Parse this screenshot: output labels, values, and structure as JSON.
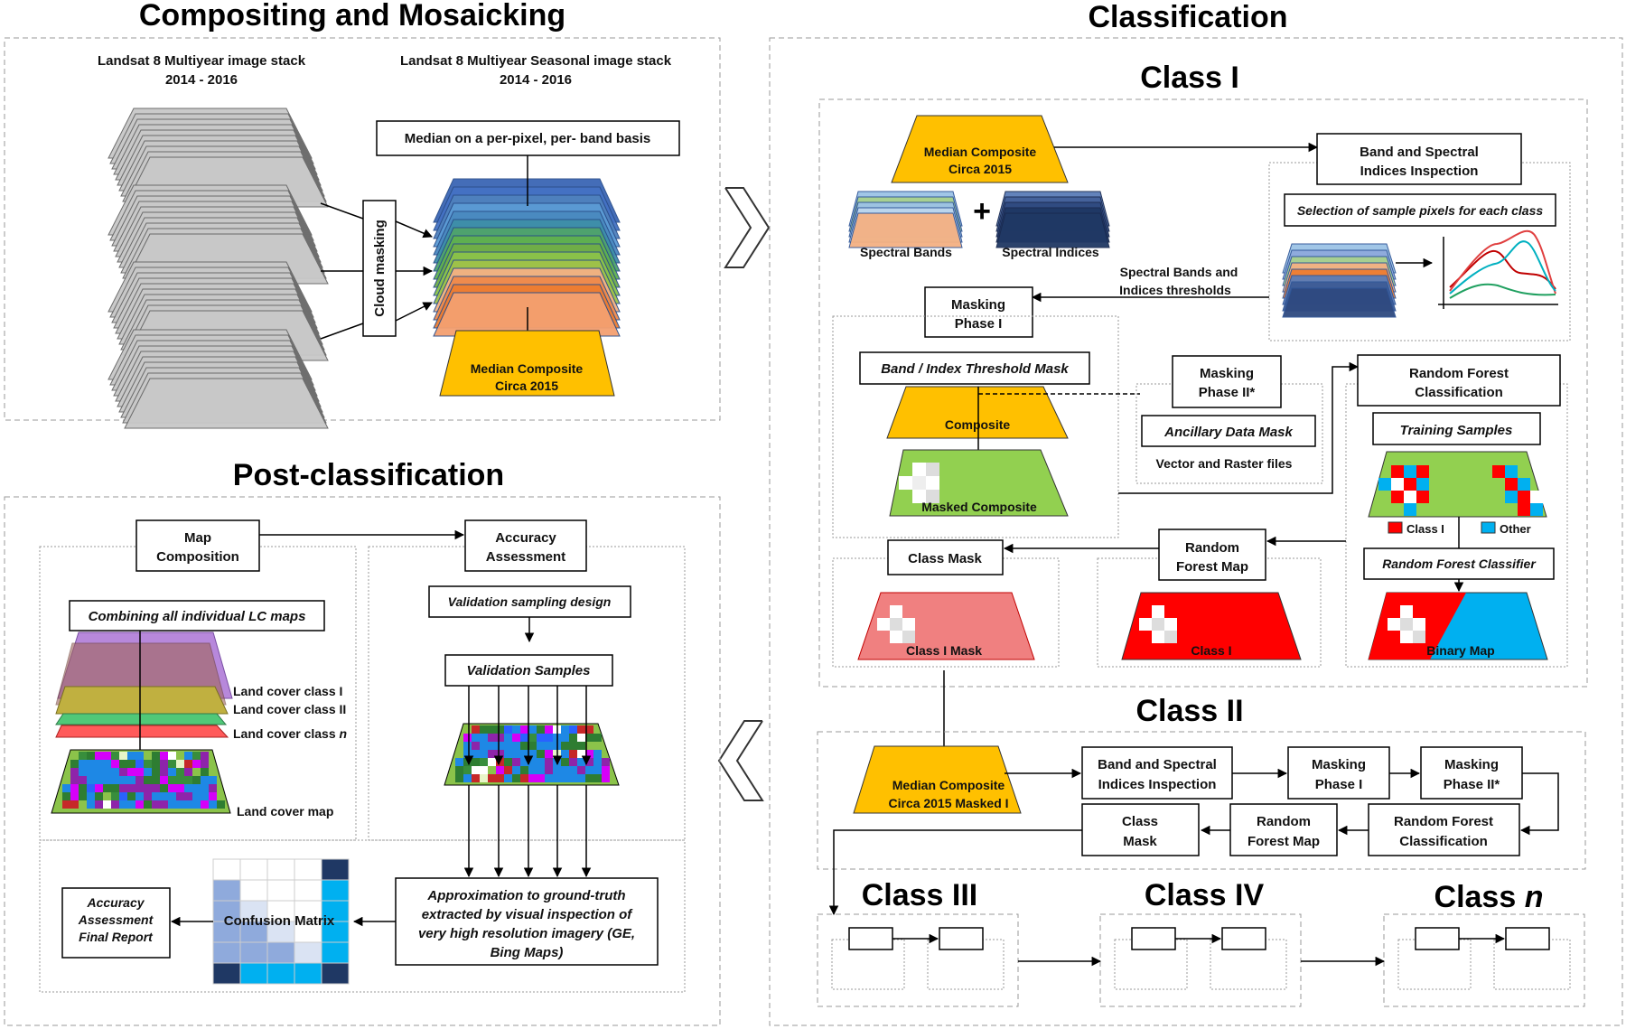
{
  "compositing": {
    "title": "Compositing and Mosaicking",
    "multiyear_stack": "Landsat 8 Multiyear image stack",
    "multiyear_years": "2014 - 2016",
    "seasonal_stack": "Landsat 8 Multiyear Seasonal image stack",
    "seasonal_years": "2014 - 2016",
    "cloud_masking": "Cloud masking",
    "median_basis": "Median on a per-pixel, per- band basis",
    "median_composite_1": "Median Composite",
    "median_composite_2": "Circa 2015"
  },
  "classification": {
    "title": "Classification",
    "class_one": "Class I",
    "median_composite_1": "Median Composite",
    "median_composite_2": "Circa 2015",
    "plus": "+",
    "spectral_bands": "Spectral Bands",
    "spectral_indices": "Spectral Indices",
    "band_inspection_1": "Band and Spectral",
    "band_inspection_2": "Indices Inspection",
    "sample_selection": "Selection of sample pixels for each class",
    "thresholds_1": "Spectral Bands and",
    "thresholds_2": "Indices thresholds",
    "masking_phase_1_a": "Masking",
    "masking_phase_1_b": "Phase I",
    "threshold_mask": "Band / Index Threshold Mask",
    "composite": "Composite",
    "masked_composite": "Masked Composite",
    "masking_phase_2_a": "Masking",
    "masking_phase_2_b": "Phase II*",
    "ancillary_mask": "Ancillary Data Mask",
    "vector_raster": "Vector and Raster files",
    "rf_classification_1": "Random Forest",
    "rf_classification_2": "Classification",
    "training_samples": "Training Samples",
    "legend_class": "Class I",
    "legend_other": "Other",
    "rf_classifier": "Random Forest Classifier",
    "binary_map": "Binary Map",
    "rf_map_1": "Random",
    "rf_map_2": "Forest Map",
    "rf_map_class": "Class I",
    "class_mask": "Class Mask",
    "class_one_mask": "Class I Mask",
    "class_two": "Class II",
    "c2_median_1": "Median Composite",
    "c2_median_2": "Circa 2015 Masked I",
    "c2_band_1": "Band and Spectral",
    "c2_band_2": "Indices Inspection",
    "c2_mask1_1": "Masking",
    "c2_mask1_2": "Phase I",
    "c2_mask2_1": "Masking",
    "c2_mask2_2": "Phase II*",
    "c2_rfc_1": "Random Forest",
    "c2_rfc_2": "Classification",
    "c2_rfm_1": "Random",
    "c2_rfm_2": "Forest Map",
    "c2_cm_1": "Class",
    "c2_cm_2": "Mask",
    "class_three": "Class III",
    "class_four": "Class IV",
    "class_n_prefix": "Class ",
    "class_n_suffix": "n"
  },
  "post": {
    "title": "Post-classification",
    "map_comp_1": "Map",
    "map_comp_2": "Composition",
    "acc_1": "Accuracy",
    "acc_2": "Assessment",
    "combining": "Combining all individual LC maps",
    "lc_class_1": "Land cover class I",
    "lc_class_2": "Land cover class II",
    "lc_class_n_prefix": "Land cover class ",
    "lc_class_n_suffix": "n",
    "land_cover_map": "Land cover map",
    "validation_design": "Validation sampling design",
    "validation_samples": "Validation Samples",
    "approx_1": "Approximation to ground-truth",
    "approx_2": "extracted by visual inspection of",
    "approx_3": "very high resolution imagery (GE,",
    "approx_4": "Bing Maps)",
    "confusion_matrix": "Confusion Matrix",
    "final_1": "Accuracy",
    "final_2": "Assessment",
    "final_3": "Final Report"
  },
  "colors": {
    "yellow": "#FFC000",
    "green": "#92D050",
    "red": "#FF0000",
    "pink": "#F08080",
    "blue": "#00B0F0"
  }
}
